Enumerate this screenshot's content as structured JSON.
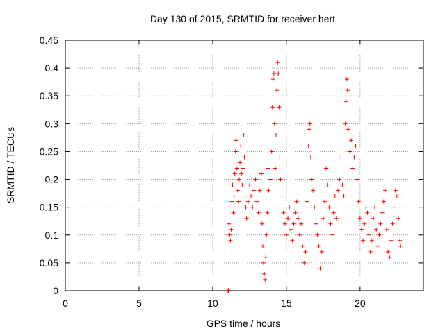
{
  "chart_data": {
    "type": "scatter",
    "title": "Day 130 of 2015, SRMTID for receiver hert",
    "xlabel": "GPS time / hours",
    "ylabel": "SRMTID / TECUs",
    "xlim": [
      0,
      24.3
    ],
    "ylim": [
      0,
      0.45
    ],
    "xticks": [
      0,
      5,
      10,
      15,
      20
    ],
    "yticks": [
      0,
      0.05,
      0.1,
      0.15,
      0.2,
      0.25,
      0.3,
      0.35,
      0.4,
      0.45
    ],
    "grid": true,
    "marker": "+",
    "series_color": "#ff0000",
    "series": [
      {
        "name": "SRMTID",
        "points": [
          [
            11.05,
            0.0
          ],
          [
            11.06,
            0.001
          ],
          [
            11.07,
            0.0
          ],
          [
            11.1,
            0.12
          ],
          [
            11.15,
            0.1
          ],
          [
            11.2,
            0.09
          ],
          [
            11.25,
            0.11
          ],
          [
            11.3,
            0.16
          ],
          [
            11.35,
            0.19
          ],
          [
            11.4,
            0.14
          ],
          [
            11.45,
            0.17
          ],
          [
            11.5,
            0.21
          ],
          [
            11.55,
            0.25
          ],
          [
            11.6,
            0.27
          ],
          [
            11.65,
            0.22
          ],
          [
            11.7,
            0.18
          ],
          [
            11.75,
            0.16
          ],
          [
            11.8,
            0.2
          ],
          [
            11.85,
            0.23
          ],
          [
            11.9,
            0.26
          ],
          [
            11.95,
            0.21
          ],
          [
            12.0,
            0.19
          ],
          [
            12.05,
            0.22
          ],
          [
            12.1,
            0.28
          ],
          [
            12.15,
            0.24
          ],
          [
            12.2,
            0.17
          ],
          [
            12.25,
            0.15
          ],
          [
            12.3,
            0.13
          ],
          [
            12.4,
            0.16
          ],
          [
            12.5,
            0.19
          ],
          [
            12.6,
            0.17
          ],
          [
            12.7,
            0.15
          ],
          [
            12.8,
            0.18
          ],
          [
            12.9,
            0.2
          ],
          [
            13.0,
            0.16
          ],
          [
            13.1,
            0.14
          ],
          [
            13.2,
            0.18
          ],
          [
            13.3,
            0.21
          ],
          [
            13.35,
            0.12
          ],
          [
            13.4,
            0.08
          ],
          [
            13.45,
            0.05
          ],
          [
            13.5,
            0.03
          ],
          [
            13.55,
            0.02
          ],
          [
            13.6,
            0.06
          ],
          [
            13.65,
            0.1
          ],
          [
            13.7,
            0.14
          ],
          [
            13.75,
            0.22
          ],
          [
            13.8,
            0.18
          ],
          [
            13.9,
            0.2
          ],
          [
            14.0,
            0.25
          ],
          [
            14.05,
            0.33
          ],
          [
            14.1,
            0.38
          ],
          [
            14.15,
            0.39
          ],
          [
            14.2,
            0.3
          ],
          [
            14.25,
            0.22
          ],
          [
            14.3,
            0.28
          ],
          [
            14.35,
            0.36
          ],
          [
            14.4,
            0.41
          ],
          [
            14.45,
            0.39
          ],
          [
            14.5,
            0.33
          ],
          [
            14.55,
            0.24
          ],
          [
            14.6,
            0.2
          ],
          [
            14.7,
            0.17
          ],
          [
            14.8,
            0.14
          ],
          [
            14.9,
            0.12
          ],
          [
            15.0,
            0.1
          ],
          [
            15.1,
            0.13
          ],
          [
            15.2,
            0.15
          ],
          [
            15.3,
            0.11
          ],
          [
            15.4,
            0.09
          ],
          [
            15.5,
            0.12
          ],
          [
            15.6,
            0.14
          ],
          [
            15.7,
            0.16
          ],
          [
            15.8,
            0.13
          ],
          [
            15.9,
            0.1
          ],
          [
            16.0,
            0.12
          ],
          [
            16.1,
            0.08
          ],
          [
            16.2,
            0.05
          ],
          [
            16.3,
            0.07
          ],
          [
            16.4,
            0.16
          ],
          [
            16.5,
            0.26
          ],
          [
            16.55,
            0.29
          ],
          [
            16.6,
            0.3
          ],
          [
            16.65,
            0.24
          ],
          [
            16.7,
            0.2
          ],
          [
            16.8,
            0.18
          ],
          [
            16.9,
            0.15
          ],
          [
            17.0,
            0.12
          ],
          [
            17.1,
            0.1
          ],
          [
            17.2,
            0.08
          ],
          [
            17.3,
            0.04
          ],
          [
            17.4,
            0.07
          ],
          [
            17.5,
            0.13
          ],
          [
            17.6,
            0.16
          ],
          [
            17.7,
            0.22
          ],
          [
            17.8,
            0.19
          ],
          [
            17.9,
            0.15
          ],
          [
            18.0,
            0.12
          ],
          [
            18.1,
            0.1
          ],
          [
            18.2,
            0.14
          ],
          [
            18.3,
            0.17
          ],
          [
            18.4,
            0.13
          ],
          [
            18.5,
            0.18
          ],
          [
            18.6,
            0.2
          ],
          [
            18.7,
            0.24
          ],
          [
            18.8,
            0.19
          ],
          [
            18.9,
            0.17
          ],
          [
            19.0,
            0.3
          ],
          [
            19.05,
            0.34
          ],
          [
            19.1,
            0.38
          ],
          [
            19.15,
            0.36
          ],
          [
            19.2,
            0.29
          ],
          [
            19.3,
            0.25
          ],
          [
            19.4,
            0.27
          ],
          [
            19.5,
            0.22
          ],
          [
            19.6,
            0.24
          ],
          [
            19.7,
            0.26
          ],
          [
            19.8,
            0.2
          ],
          [
            19.9,
            0.16
          ],
          [
            20.0,
            0.13
          ],
          [
            20.1,
            0.11
          ],
          [
            20.2,
            0.09
          ],
          [
            20.3,
            0.12
          ],
          [
            20.4,
            0.15
          ],
          [
            20.5,
            0.14
          ],
          [
            20.6,
            0.1
          ],
          [
            20.7,
            0.07
          ],
          [
            20.8,
            0.09
          ],
          [
            20.9,
            0.13
          ],
          [
            21.0,
            0.15
          ],
          [
            21.1,
            0.11
          ],
          [
            21.2,
            0.08
          ],
          [
            21.3,
            0.1
          ],
          [
            21.4,
            0.12
          ],
          [
            21.5,
            0.14
          ],
          [
            21.6,
            0.16
          ],
          [
            21.7,
            0.18
          ],
          [
            21.8,
            0.11
          ],
          [
            21.9,
            0.07
          ],
          [
            22.0,
            0.06
          ],
          [
            22.1,
            0.09
          ],
          [
            22.2,
            0.12
          ],
          [
            22.3,
            0.15
          ],
          [
            22.4,
            0.18
          ],
          [
            22.5,
            0.17
          ],
          [
            22.6,
            0.13
          ],
          [
            22.7,
            0.09
          ],
          [
            22.75,
            0.08
          ]
        ]
      }
    ]
  }
}
